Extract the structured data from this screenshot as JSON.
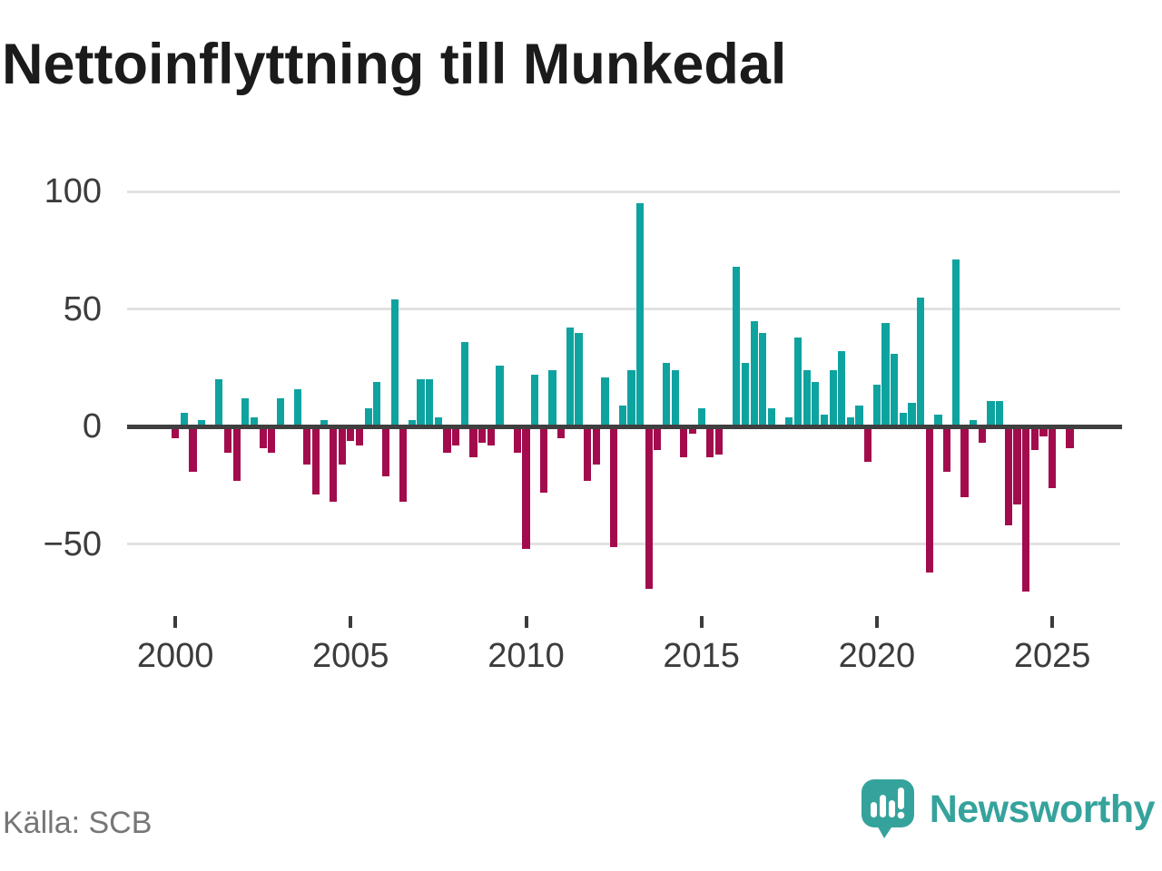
{
  "page": {
    "background": "#ffffff"
  },
  "footer": {
    "source": "Källa: SCB",
    "brand": "Newsworthy",
    "brand_icon": "newsworthy-speech-bubble-bar-chart-icon"
  },
  "colors": {
    "positive_bar": "#0fa3a0",
    "negative_bar": "#a30c4c",
    "zero_line": "#3f3f3f",
    "gridline": "#e2e2e2",
    "axis_text": "#3c3c3c",
    "title_text": "#1b1b1b",
    "source_text": "#767676",
    "brand_teal": "#35a39c"
  },
  "chart_data": {
    "type": "bar",
    "title": "Nettoinflyttning till Munkedal",
    "xlabel": "",
    "ylabel": "",
    "frequency": "quarterly",
    "x_tick_labels": [
      "2000",
      "2005",
      "2010",
      "2015",
      "2020",
      "2025"
    ],
    "y_tick_labels": [
      "100",
      "50",
      "0",
      "−50"
    ],
    "y_tick_values": [
      100,
      50,
      0,
      -50
    ],
    "ylim": [
      -78,
      106
    ],
    "grid": "horizontal",
    "legend": "none",
    "bar_color_rule": "teal when positive, crimson when negative",
    "points": [
      {
        "t": "2000 Q1",
        "v": -5
      },
      {
        "t": "2000 Q2",
        "v": 6
      },
      {
        "t": "2000 Q3",
        "v": -19
      },
      {
        "t": "2000 Q4",
        "v": 3
      },
      {
        "t": "2001 Q1",
        "v": 0
      },
      {
        "t": "2001 Q2",
        "v": 20
      },
      {
        "t": "2001 Q3",
        "v": -11
      },
      {
        "t": "2001 Q4",
        "v": -23
      },
      {
        "t": "2002 Q1",
        "v": 12
      },
      {
        "t": "2002 Q2",
        "v": 4
      },
      {
        "t": "2002 Q3",
        "v": -9
      },
      {
        "t": "2002 Q4",
        "v": -11
      },
      {
        "t": "2003 Q1",
        "v": 12
      },
      {
        "t": "2003 Q2",
        "v": 0
      },
      {
        "t": "2003 Q3",
        "v": 16
      },
      {
        "t": "2003 Q4",
        "v": -16
      },
      {
        "t": "2004 Q1",
        "v": -29
      },
      {
        "t": "2004 Q2",
        "v": 3
      },
      {
        "t": "2004 Q3",
        "v": -32
      },
      {
        "t": "2004 Q4",
        "v": -16
      },
      {
        "t": "2005 Q1",
        "v": -6
      },
      {
        "t": "2005 Q2",
        "v": -8
      },
      {
        "t": "2005 Q3",
        "v": 8
      },
      {
        "t": "2005 Q4",
        "v": 19
      },
      {
        "t": "2006 Q1",
        "v": -21
      },
      {
        "t": "2006 Q2",
        "v": 54
      },
      {
        "t": "2006 Q3",
        "v": -32
      },
      {
        "t": "2006 Q4",
        "v": 3
      },
      {
        "t": "2007 Q1",
        "v": 20
      },
      {
        "t": "2007 Q2",
        "v": 20
      },
      {
        "t": "2007 Q3",
        "v": 4
      },
      {
        "t": "2007 Q4",
        "v": -11
      },
      {
        "t": "2008 Q1",
        "v": -8
      },
      {
        "t": "2008 Q2",
        "v": 36
      },
      {
        "t": "2008 Q3",
        "v": -13
      },
      {
        "t": "2008 Q4",
        "v": -7
      },
      {
        "t": "2009 Q1",
        "v": -8
      },
      {
        "t": "2009 Q2",
        "v": 26
      },
      {
        "t": "2009 Q3",
        "v": 0
      },
      {
        "t": "2009 Q4",
        "v": -11
      },
      {
        "t": "2010 Q1",
        "v": -52
      },
      {
        "t": "2010 Q2",
        "v": 22
      },
      {
        "t": "2010 Q3",
        "v": -28
      },
      {
        "t": "2010 Q4",
        "v": 24
      },
      {
        "t": "2011 Q1",
        "v": -5
      },
      {
        "t": "2011 Q2",
        "v": 42
      },
      {
        "t": "2011 Q3",
        "v": 40
      },
      {
        "t": "2011 Q4",
        "v": -23
      },
      {
        "t": "2012 Q1",
        "v": -16
      },
      {
        "t": "2012 Q2",
        "v": 21
      },
      {
        "t": "2012 Q3",
        "v": -51
      },
      {
        "t": "2012 Q4",
        "v": 9
      },
      {
        "t": "2013 Q1",
        "v": 24
      },
      {
        "t": "2013 Q2",
        "v": 95
      },
      {
        "t": "2013 Q3",
        "v": -69
      },
      {
        "t": "2013 Q4",
        "v": -10
      },
      {
        "t": "2014 Q1",
        "v": 27
      },
      {
        "t": "2014 Q2",
        "v": 24
      },
      {
        "t": "2014 Q3",
        "v": -13
      },
      {
        "t": "2014 Q4",
        "v": -3
      },
      {
        "t": "2015 Q1",
        "v": 8
      },
      {
        "t": "2015 Q2",
        "v": -13
      },
      {
        "t": "2015 Q3",
        "v": -12
      },
      {
        "t": "2015 Q4",
        "v": 0
      },
      {
        "t": "2016 Q1",
        "v": 68
      },
      {
        "t": "2016 Q2",
        "v": 27
      },
      {
        "t": "2016 Q3",
        "v": 45
      },
      {
        "t": "2016 Q4",
        "v": 40
      },
      {
        "t": "2017 Q1",
        "v": 8
      },
      {
        "t": "2017 Q2",
        "v": 0
      },
      {
        "t": "2017 Q3",
        "v": 4
      },
      {
        "t": "2017 Q4",
        "v": 38
      },
      {
        "t": "2018 Q1",
        "v": 24
      },
      {
        "t": "2018 Q2",
        "v": 19
      },
      {
        "t": "2018 Q3",
        "v": 5
      },
      {
        "t": "2018 Q4",
        "v": 24
      },
      {
        "t": "2019 Q1",
        "v": 32
      },
      {
        "t": "2019 Q2",
        "v": 4
      },
      {
        "t": "2019 Q3",
        "v": 9
      },
      {
        "t": "2019 Q4",
        "v": -15
      },
      {
        "t": "2020 Q1",
        "v": 18
      },
      {
        "t": "2020 Q2",
        "v": 44
      },
      {
        "t": "2020 Q3",
        "v": 31
      },
      {
        "t": "2020 Q4",
        "v": 6
      },
      {
        "t": "2021 Q1",
        "v": 10
      },
      {
        "t": "2021 Q2",
        "v": 55
      },
      {
        "t": "2021 Q3",
        "v": -62
      },
      {
        "t": "2021 Q4",
        "v": 5
      },
      {
        "t": "2022 Q1",
        "v": -19
      },
      {
        "t": "2022 Q2",
        "v": 71
      },
      {
        "t": "2022 Q3",
        "v": -30
      },
      {
        "t": "2022 Q4",
        "v": 3
      },
      {
        "t": "2023 Q1",
        "v": -7
      },
      {
        "t": "2023 Q2",
        "v": 11
      },
      {
        "t": "2023 Q3",
        "v": 11
      },
      {
        "t": "2023 Q4",
        "v": -42
      },
      {
        "t": "2024 Q1",
        "v": -33
      },
      {
        "t": "2024 Q2",
        "v": -70
      },
      {
        "t": "2024 Q3",
        "v": -10
      },
      {
        "t": "2024 Q4",
        "v": -4
      },
      {
        "t": "2025 Q1",
        "v": -26
      },
      {
        "t": "2025 Q2",
        "v": 0
      },
      {
        "t": "2025 Q3",
        "v": -9
      }
    ]
  }
}
